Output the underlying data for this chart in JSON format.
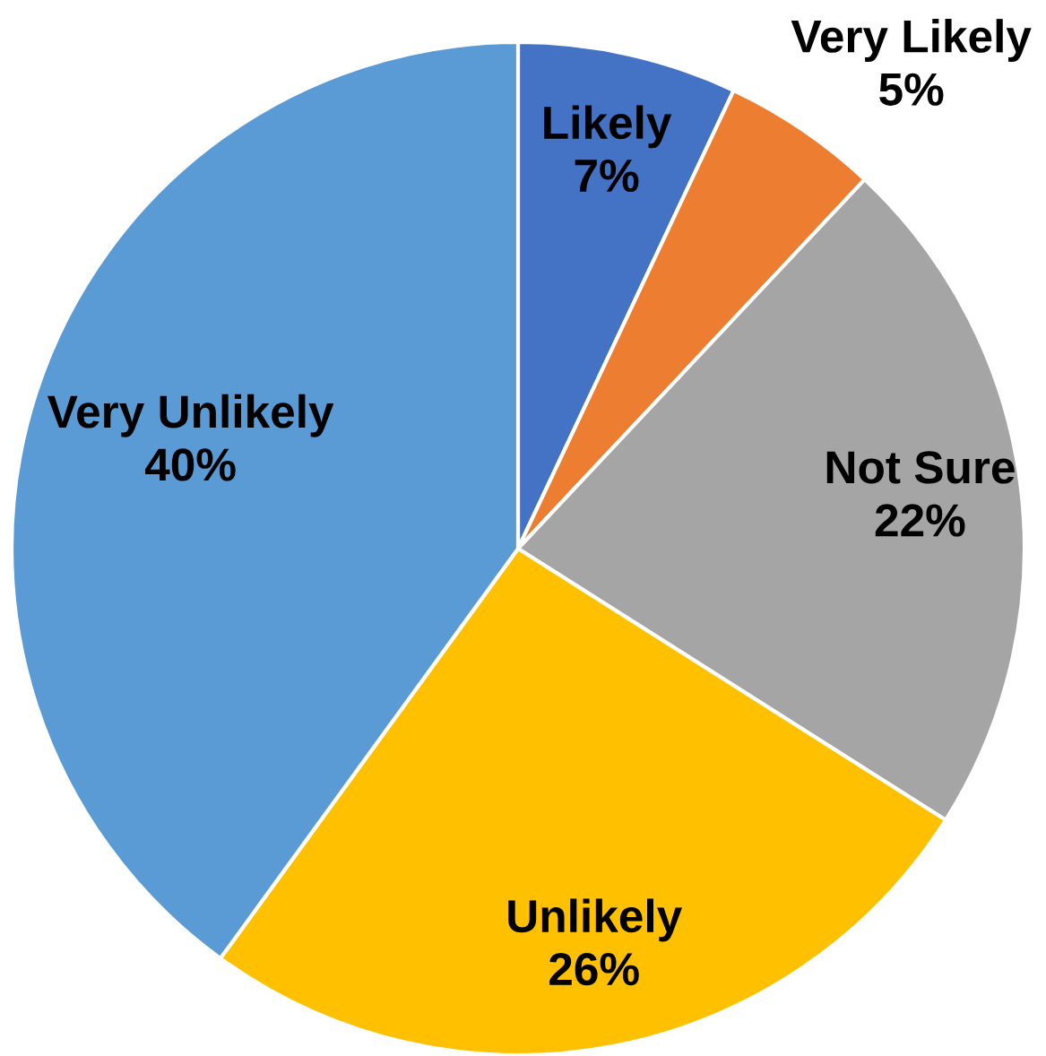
{
  "chart_data": {
    "type": "pie",
    "categories": [
      "Likely",
      "Very Likely",
      "Not Sure",
      "Unlikely",
      "Very Unlikely"
    ],
    "values": [
      7,
      5,
      22,
      26,
      40
    ],
    "colors": [
      "#4472c4",
      "#ed7d31",
      "#a5a5a5",
      "#ffc000",
      "#5b9bd5"
    ],
    "value_labels": [
      "7%",
      "5%",
      "22%",
      "26%",
      "40%"
    ]
  }
}
